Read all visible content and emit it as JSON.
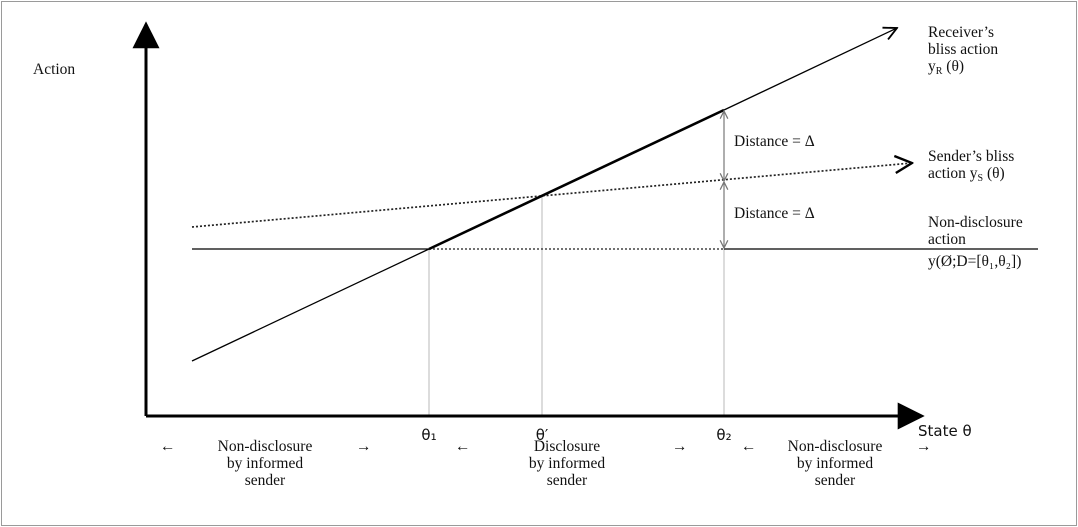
{
  "axes": {
    "y_label": "Action",
    "x_label": "State θ"
  },
  "curves": {
    "receiver": {
      "line1": "Receiver’s",
      "line2": "bliss action",
      "line3_main": "y",
      "line3_sub": "R",
      "line3_rest": " (θ)"
    },
    "sender": {
      "line1": "Sender’s bliss",
      "line2_main": "action y",
      "line2_sub": "S",
      "line2_rest": " (θ)"
    },
    "nondisclosure": {
      "line1": "Non-disclosure",
      "line2": "action",
      "line3": "y(Ø;D=[θ₁,θ₂])"
    }
  },
  "distances": {
    "upper": "Distance = Δ",
    "lower": "Distance = Δ"
  },
  "ticks": {
    "theta1": "θ₁",
    "theta_prime": "θ′",
    "theta2": "θ₂"
  },
  "regions": {
    "left": {
      "arrow_left": "←",
      "arrow_right": "→",
      "line1": "Non-disclosure",
      "line2": "by informed",
      "line3": "sender"
    },
    "middle": {
      "arrow_left": "←",
      "arrow_right": "→",
      "line1": "Disclosure",
      "line2": "by informed",
      "line3": "sender"
    },
    "right": {
      "arrow_left": "←",
      "arrow_right": "→",
      "line1": "Non-disclosure",
      "line2": "by informed",
      "line3": "sender"
    }
  }
}
